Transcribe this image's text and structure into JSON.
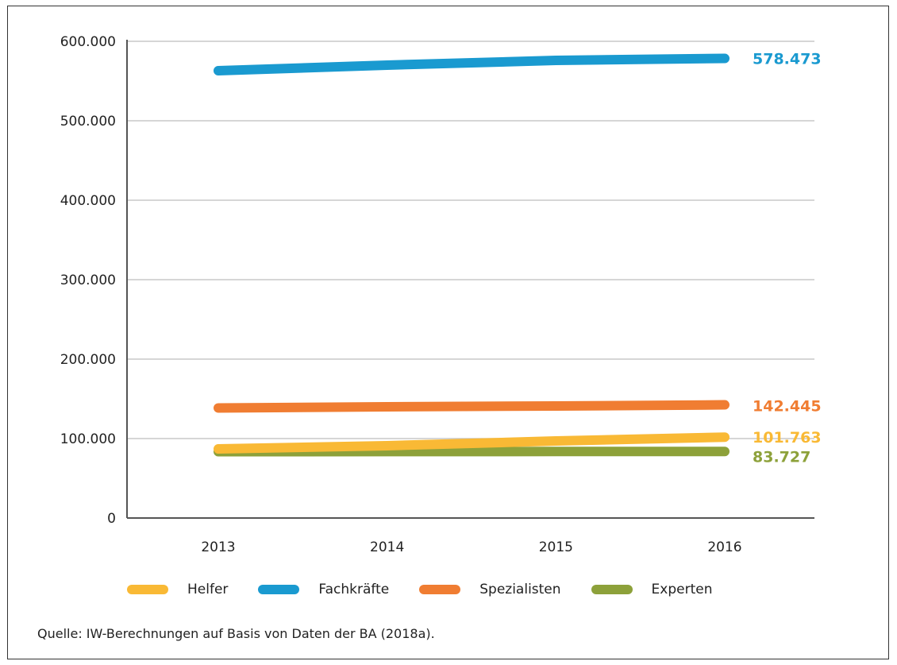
{
  "chart_data": {
    "type": "line",
    "title": "",
    "xlabel": "",
    "ylabel": "",
    "x": [
      "2013",
      "2014",
      "2015",
      "2016"
    ],
    "ylim": [
      0,
      600000
    ],
    "yticks": [
      0,
      100000,
      200000,
      300000,
      400000,
      500000,
      600000
    ],
    "ytick_labels": [
      "0",
      "100.000",
      "200.000",
      "300.000",
      "400.000",
      "500.000",
      "600.000"
    ],
    "grid": true,
    "legend_position": "bottom",
    "series": [
      {
        "name": "Helfer",
        "values": [
          87000,
          91000,
          97000,
          101763
        ],
        "color": "#F9B935",
        "end_label": "101.763"
      },
      {
        "name": "Fachkräfte",
        "values": [
          563000,
          570000,
          576000,
          578473
        ],
        "color": "#1A9AD0",
        "end_label": "578.473"
      },
      {
        "name": "Spezialisten",
        "values": [
          138500,
          140000,
          141000,
          142445
        ],
        "color": "#F07D32",
        "end_label": "142.445"
      },
      {
        "name": "Experten",
        "values": [
          83500,
          83600,
          83700,
          83727
        ],
        "color": "#8DA13A",
        "end_label": "83.727"
      }
    ]
  },
  "legend": {
    "items": [
      {
        "label": "Helfer",
        "color": "#F9B935"
      },
      {
        "label": "Fachkräfte",
        "color": "#1A9AD0"
      },
      {
        "label": "Spezialisten",
        "color": "#F07D32"
      },
      {
        "label": "Experten",
        "color": "#8DA13A"
      }
    ]
  },
  "source_note": "Quelle: IW-Berechnungen auf Basis von Daten der BA (2018a)."
}
